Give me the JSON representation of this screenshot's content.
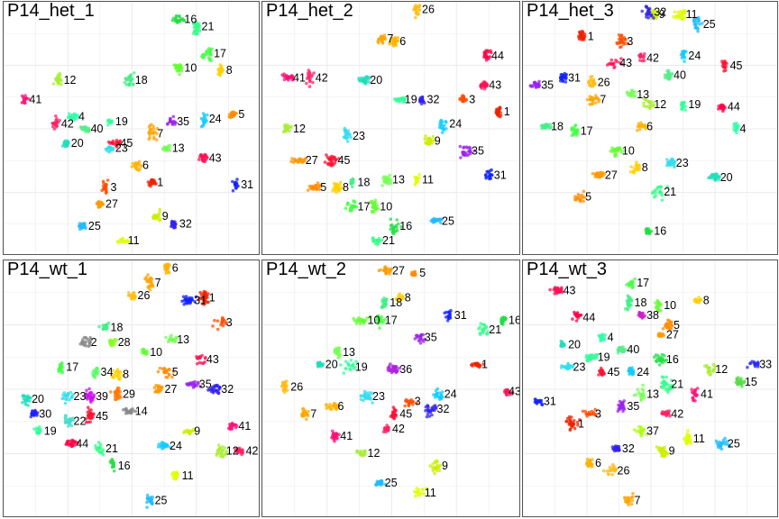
{
  "figure": {
    "background": "#ffffff",
    "border_color": "#555555",
    "grid_color": "#ebebeb"
  },
  "palette": {
    "1": "#ee2200",
    "3": "#ff4d00",
    "4": "#33ffaa",
    "5": "#ff8c00",
    "6": "#ffb300",
    "7": "#ffa500",
    "8": "#ffd000",
    "9": "#ccee00",
    "10": "#66ff33",
    "11": "#ddff00",
    "12": "#aaee33",
    "13": "#77ff55",
    "15": "#55dd44",
    "16": "#22dd44",
    "17": "#44ff44",
    "18": "#44ee88",
    "19": "#33ff99",
    "20": "#22ddbb",
    "21": "#33ff88",
    "22": "#44ddcc",
    "23": "#33ddee",
    "24": "#11ccff",
    "25": "#22bbff",
    "26": "#ffbb11",
    "27": "#ff9900",
    "28": "#88ff22",
    "29": "#ff7700",
    "30": "#2222ff",
    "31": "#1122ff",
    "32": "#3322ee",
    "33": "#2a2aff",
    "34": "#55ff66",
    "35": "#9922ee",
    "36": "#aa22dd",
    "37": "#aaff00",
    "38": "#cc22cc",
    "39": "#cc11ee",
    "40": "#55ee88",
    "41": "#ff1177",
    "42": "#ff2266",
    "43": "#ff1155",
    "44": "#ff0044",
    "45": "#ff1133"
  },
  "chart_data": [
    {
      "type": "scatter",
      "title": "P14_het_1",
      "grid": true,
      "clusters": [
        {
          "id": "1",
          "x": 0.58,
          "y": 0.28
        },
        {
          "id": "3",
          "x": 0.39,
          "y": 0.26
        },
        {
          "id": "4",
          "x": 0.26,
          "y": 0.55
        },
        {
          "id": "5",
          "x": 0.91,
          "y": 0.56
        },
        {
          "id": "6",
          "x": 0.52,
          "y": 0.35
        },
        {
          "id": "7",
          "x": 0.58,
          "y": 0.48
        },
        {
          "id": "8",
          "x": 0.86,
          "y": 0.74
        },
        {
          "id": "9",
          "x": 0.6,
          "y": 0.14
        },
        {
          "id": "10",
          "x": 0.69,
          "y": 0.75
        },
        {
          "id": "11",
          "x": 0.46,
          "y": 0.04
        },
        {
          "id": "12",
          "x": 0.2,
          "y": 0.7
        },
        {
          "id": "13",
          "x": 0.64,
          "y": 0.42
        },
        {
          "id": "16",
          "x": 0.69,
          "y": 0.95
        },
        {
          "id": "17",
          "x": 0.81,
          "y": 0.81
        },
        {
          "id": "18",
          "x": 0.49,
          "y": 0.7
        },
        {
          "id": "19",
          "x": 0.41,
          "y": 0.53
        },
        {
          "id": "20",
          "x": 0.23,
          "y": 0.44
        },
        {
          "id": "21",
          "x": 0.76,
          "y": 0.92
        },
        {
          "id": "23",
          "x": 0.41,
          "y": 0.42
        },
        {
          "id": "24",
          "x": 0.79,
          "y": 0.54
        },
        {
          "id": "25",
          "x": 0.3,
          "y": 0.1
        },
        {
          "id": "27",
          "x": 0.37,
          "y": 0.19
        },
        {
          "id": "31",
          "x": 0.92,
          "y": 0.27
        },
        {
          "id": "32",
          "x": 0.67,
          "y": 0.11
        },
        {
          "id": "35",
          "x": 0.66,
          "y": 0.53
        },
        {
          "id": "40",
          "x": 0.31,
          "y": 0.5
        },
        {
          "id": "41",
          "x": 0.06,
          "y": 0.62
        },
        {
          "id": "42",
          "x": 0.19,
          "y": 0.52
        },
        {
          "id": "43",
          "x": 0.79,
          "y": 0.38
        },
        {
          "id": "45",
          "x": 0.43,
          "y": 0.44
        }
      ]
    },
    {
      "type": "scatter",
      "title": "P14_het_2",
      "grid": true,
      "clusters": [
        {
          "id": "1",
          "x": 0.93,
          "y": 0.57
        },
        {
          "id": "3",
          "x": 0.79,
          "y": 0.62
        },
        {
          "id": "5",
          "x": 0.19,
          "y": 0.26
        },
        {
          "id": "6",
          "x": 0.51,
          "y": 0.86
        },
        {
          "id": "7",
          "x": 0.46,
          "y": 0.87
        },
        {
          "id": "8",
          "x": 0.28,
          "y": 0.26
        },
        {
          "id": "9",
          "x": 0.65,
          "y": 0.45
        },
        {
          "id": "10",
          "x": 0.43,
          "y": 0.18
        },
        {
          "id": "11",
          "x": 0.6,
          "y": 0.29
        },
        {
          "id": "12",
          "x": 0.08,
          "y": 0.5
        },
        {
          "id": "13",
          "x": 0.48,
          "y": 0.29
        },
        {
          "id": "16",
          "x": 0.51,
          "y": 0.1
        },
        {
          "id": "17",
          "x": 0.34,
          "y": 0.18
        },
        {
          "id": "18",
          "x": 0.34,
          "y": 0.28
        },
        {
          "id": "19",
          "x": 0.53,
          "y": 0.62
        },
        {
          "id": "20",
          "x": 0.39,
          "y": 0.7
        },
        {
          "id": "21",
          "x": 0.44,
          "y": 0.04
        },
        {
          "id": "23",
          "x": 0.32,
          "y": 0.47
        },
        {
          "id": "24",
          "x": 0.71,
          "y": 0.52
        },
        {
          "id": "25",
          "x": 0.68,
          "y": 0.12
        },
        {
          "id": "26",
          "x": 0.6,
          "y": 0.99
        },
        {
          "id": "27",
          "x": 0.13,
          "y": 0.37
        },
        {
          "id": "31",
          "x": 0.89,
          "y": 0.31
        },
        {
          "id": "32",
          "x": 0.62,
          "y": 0.62
        },
        {
          "id": "35",
          "x": 0.8,
          "y": 0.41
        },
        {
          "id": "41",
          "x": 0.08,
          "y": 0.71
        },
        {
          "id": "42",
          "x": 0.17,
          "y": 0.71
        },
        {
          "id": "43",
          "x": 0.87,
          "y": 0.68
        },
        {
          "id": "44",
          "x": 0.88,
          "y": 0.8
        },
        {
          "id": "45",
          "x": 0.26,
          "y": 0.37
        }
      ]
    },
    {
      "type": "scatter",
      "title": "P14_het_3",
      "grid": true,
      "clusters": [
        {
          "id": "1",
          "x": 0.22,
          "y": 0.88
        },
        {
          "id": "3",
          "x": 0.38,
          "y": 0.86
        },
        {
          "id": "4",
          "x": 0.84,
          "y": 0.5
        },
        {
          "id": "5",
          "x": 0.21,
          "y": 0.22
        },
        {
          "id": "6",
          "x": 0.46,
          "y": 0.51
        },
        {
          "id": "7",
          "x": 0.27,
          "y": 0.62
        },
        {
          "id": "8",
          "x": 0.44,
          "y": 0.34
        },
        {
          "id": "9",
          "x": 0.51,
          "y": 0.97
        },
        {
          "id": "10",
          "x": 0.36,
          "y": 0.41
        },
        {
          "id": "11",
          "x": 0.62,
          "y": 0.97
        },
        {
          "id": "12",
          "x": 0.49,
          "y": 0.6
        },
        {
          "id": "13",
          "x": 0.42,
          "y": 0.64
        },
        {
          "id": "16",
          "x": 0.49,
          "y": 0.08
        },
        {
          "id": "17",
          "x": 0.19,
          "y": 0.49
        },
        {
          "id": "18",
          "x": 0.07,
          "y": 0.51
        },
        {
          "id": "19",
          "x": 0.63,
          "y": 0.6
        },
        {
          "id": "20",
          "x": 0.76,
          "y": 0.3
        },
        {
          "id": "21",
          "x": 0.53,
          "y": 0.24
        },
        {
          "id": "23",
          "x": 0.58,
          "y": 0.36
        },
        {
          "id": "24",
          "x": 0.63,
          "y": 0.8
        },
        {
          "id": "25",
          "x": 0.69,
          "y": 0.93
        },
        {
          "id": "26",
          "x": 0.26,
          "y": 0.69
        },
        {
          "id": "27",
          "x": 0.29,
          "y": 0.31
        },
        {
          "id": "31",
          "x": 0.14,
          "y": 0.71
        },
        {
          "id": "32",
          "x": 0.49,
          "y": 0.98
        },
        {
          "id": "35",
          "x": 0.03,
          "y": 0.68
        },
        {
          "id": "40",
          "x": 0.57,
          "y": 0.72
        },
        {
          "id": "42",
          "x": 0.46,
          "y": 0.79
        },
        {
          "id": "43",
          "x": 0.35,
          "y": 0.77
        },
        {
          "id": "44",
          "x": 0.79,
          "y": 0.59
        },
        {
          "id": "45",
          "x": 0.8,
          "y": 0.76
        }
      ]
    },
    {
      "type": "scatter",
      "title": "P14_wt_1",
      "grid": true,
      "clusters": [
        {
          "id": "1",
          "x": 0.79,
          "y": 0.87
        },
        {
          "id": "2",
          "x": 0.31,
          "y": 0.69
        },
        {
          "id": "3",
          "x": 0.86,
          "y": 0.77
        },
        {
          "id": "5",
          "x": 0.64,
          "y": 0.57
        },
        {
          "id": "6",
          "x": 0.64,
          "y": 0.99
        },
        {
          "id": "7",
          "x": 0.57,
          "y": 0.93
        },
        {
          "id": "8",
          "x": 0.44,
          "y": 0.56
        },
        {
          "id": "9",
          "x": 0.73,
          "y": 0.33
        },
        {
          "id": "10",
          "x": 0.55,
          "y": 0.65
        },
        {
          "id": "11",
          "x": 0.68,
          "y": 0.15
        },
        {
          "id": "12",
          "x": 0.86,
          "y": 0.25
        },
        {
          "id": "13",
          "x": 0.66,
          "y": 0.7
        },
        {
          "id": "14",
          "x": 0.49,
          "y": 0.41
        },
        {
          "id": "16",
          "x": 0.42,
          "y": 0.19
        },
        {
          "id": "17",
          "x": 0.21,
          "y": 0.59
        },
        {
          "id": "18",
          "x": 0.39,
          "y": 0.75
        },
        {
          "id": "19",
          "x": 0.12,
          "y": 0.33
        },
        {
          "id": "20",
          "x": 0.07,
          "y": 0.46
        },
        {
          "id": "21",
          "x": 0.37,
          "y": 0.26
        },
        {
          "id": "22",
          "x": 0.24,
          "y": 0.37
        },
        {
          "id": "23",
          "x": 0.24,
          "y": 0.47
        },
        {
          "id": "24",
          "x": 0.63,
          "y": 0.27
        },
        {
          "id": "25",
          "x": 0.57,
          "y": 0.05
        },
        {
          "id": "26",
          "x": 0.5,
          "y": 0.88
        },
        {
          "id": "27",
          "x": 0.61,
          "y": 0.5
        },
        {
          "id": "28",
          "x": 0.42,
          "y": 0.69
        },
        {
          "id": "29",
          "x": 0.44,
          "y": 0.48
        },
        {
          "id": "30",
          "x": 0.1,
          "y": 0.4
        },
        {
          "id": "31",
          "x": 0.73,
          "y": 0.86
        },
        {
          "id": "32",
          "x": 0.84,
          "y": 0.5
        },
        {
          "id": "34",
          "x": 0.35,
          "y": 0.57
        },
        {
          "id": "35",
          "x": 0.75,
          "y": 0.52
        },
        {
          "id": "39",
          "x": 0.33,
          "y": 0.47
        },
        {
          "id": "41",
          "x": 0.91,
          "y": 0.35
        },
        {
          "id": "42",
          "x": 0.94,
          "y": 0.25
        },
        {
          "id": "43",
          "x": 0.78,
          "y": 0.62
        },
        {
          "id": "44",
          "x": 0.25,
          "y": 0.28
        },
        {
          "id": "45",
          "x": 0.33,
          "y": 0.39
        }
      ]
    },
    {
      "type": "scatter",
      "title": "P14_wt_2",
      "grid": true,
      "clusters": [
        {
          "id": "1",
          "x": 0.84,
          "y": 0.6
        },
        {
          "id": "3",
          "x": 0.57,
          "y": 0.45
        },
        {
          "id": "5",
          "x": 0.59,
          "y": 0.97
        },
        {
          "id": "6",
          "x": 0.26,
          "y": 0.43
        },
        {
          "id": "7",
          "x": 0.15,
          "y": 0.4
        },
        {
          "id": "8",
          "x": 0.53,
          "y": 0.87
        },
        {
          "id": "9",
          "x": 0.68,
          "y": 0.19
        },
        {
          "id": "10",
          "x": 0.38,
          "y": 0.78
        },
        {
          "id": "11",
          "x": 0.61,
          "y": 0.08
        },
        {
          "id": "12",
          "x": 0.38,
          "y": 0.24
        },
        {
          "id": "13",
          "x": 0.28,
          "y": 0.65
        },
        {
          "id": "16",
          "x": 0.95,
          "y": 0.78
        },
        {
          "id": "17",
          "x": 0.45,
          "y": 0.78
        },
        {
          "id": "18",
          "x": 0.47,
          "y": 0.85
        },
        {
          "id": "19",
          "x": 0.33,
          "y": 0.59
        },
        {
          "id": "20",
          "x": 0.21,
          "y": 0.6
        },
        {
          "id": "21",
          "x": 0.87,
          "y": 0.74
        },
        {
          "id": "23",
          "x": 0.4,
          "y": 0.47
        },
        {
          "id": "24",
          "x": 0.69,
          "y": 0.48
        },
        {
          "id": "25",
          "x": 0.45,
          "y": 0.12
        },
        {
          "id": "26",
          "x": 0.07,
          "y": 0.51
        },
        {
          "id": "27",
          "x": 0.48,
          "y": 0.98
        },
        {
          "id": "31",
          "x": 0.73,
          "y": 0.8
        },
        {
          "id": "32",
          "x": 0.66,
          "y": 0.42
        },
        {
          "id": "35",
          "x": 0.61,
          "y": 0.71
        },
        {
          "id": "36",
          "x": 0.51,
          "y": 0.58
        },
        {
          "id": "41",
          "x": 0.27,
          "y": 0.31
        },
        {
          "id": "42",
          "x": 0.48,
          "y": 0.34
        },
        {
          "id": "43",
          "x": 0.97,
          "y": 0.49
        },
        {
          "id": "45",
          "x": 0.51,
          "y": 0.4
        }
      ]
    },
    {
      "type": "scatter",
      "title": "P14_wt_3",
      "grid": true,
      "clusters": [
        {
          "id": "1",
          "x": 0.18,
          "y": 0.36
        },
        {
          "id": "3",
          "x": 0.25,
          "y": 0.4
        },
        {
          "id": "4",
          "x": 0.3,
          "y": 0.71
        },
        {
          "id": "5",
          "x": 0.57,
          "y": 0.76
        },
        {
          "id": "6",
          "x": 0.25,
          "y": 0.2
        },
        {
          "id": "7",
          "x": 0.41,
          "y": 0.05
        },
        {
          "id": "8",
          "x": 0.69,
          "y": 0.86
        },
        {
          "id": "9",
          "x": 0.55,
          "y": 0.25
        },
        {
          "id": "10",
          "x": 0.53,
          "y": 0.84
        },
        {
          "id": "11",
          "x": 0.65,
          "y": 0.3
        },
        {
          "id": "12",
          "x": 0.74,
          "y": 0.58
        },
        {
          "id": "13",
          "x": 0.46,
          "y": 0.48
        },
        {
          "id": "15",
          "x": 0.86,
          "y": 0.53
        },
        {
          "id": "16",
          "x": 0.54,
          "y": 0.62
        },
        {
          "id": "17",
          "x": 0.42,
          "y": 0.93
        },
        {
          "id": "18",
          "x": 0.41,
          "y": 0.85
        },
        {
          "id": "19",
          "x": 0.26,
          "y": 0.63
        },
        {
          "id": "20",
          "x": 0.14,
          "y": 0.68
        },
        {
          "id": "21",
          "x": 0.56,
          "y": 0.52
        },
        {
          "id": "23",
          "x": 0.16,
          "y": 0.59
        },
        {
          "id": "24",
          "x": 0.42,
          "y": 0.57
        },
        {
          "id": "25",
          "x": 0.79,
          "y": 0.28
        },
        {
          "id": "26",
          "x": 0.34,
          "y": 0.17
        },
        {
          "id": "27",
          "x": 0.54,
          "y": 0.72
        },
        {
          "id": "31",
          "x": 0.04,
          "y": 0.45
        },
        {
          "id": "32",
          "x": 0.36,
          "y": 0.26
        },
        {
          "id": "33",
          "x": 0.92,
          "y": 0.6
        },
        {
          "id": "35",
          "x": 0.38,
          "y": 0.43
        },
        {
          "id": "37",
          "x": 0.46,
          "y": 0.33
        },
        {
          "id": "38",
          "x": 0.46,
          "y": 0.8
        },
        {
          "id": "40",
          "x": 0.38,
          "y": 0.66
        },
        {
          "id": "41",
          "x": 0.68,
          "y": 0.48
        },
        {
          "id": "42",
          "x": 0.56,
          "y": 0.4
        },
        {
          "id": "43",
          "x": 0.12,
          "y": 0.9
        },
        {
          "id": "44",
          "x": 0.2,
          "y": 0.79
        },
        {
          "id": "45",
          "x": 0.3,
          "y": 0.57
        }
      ]
    }
  ]
}
